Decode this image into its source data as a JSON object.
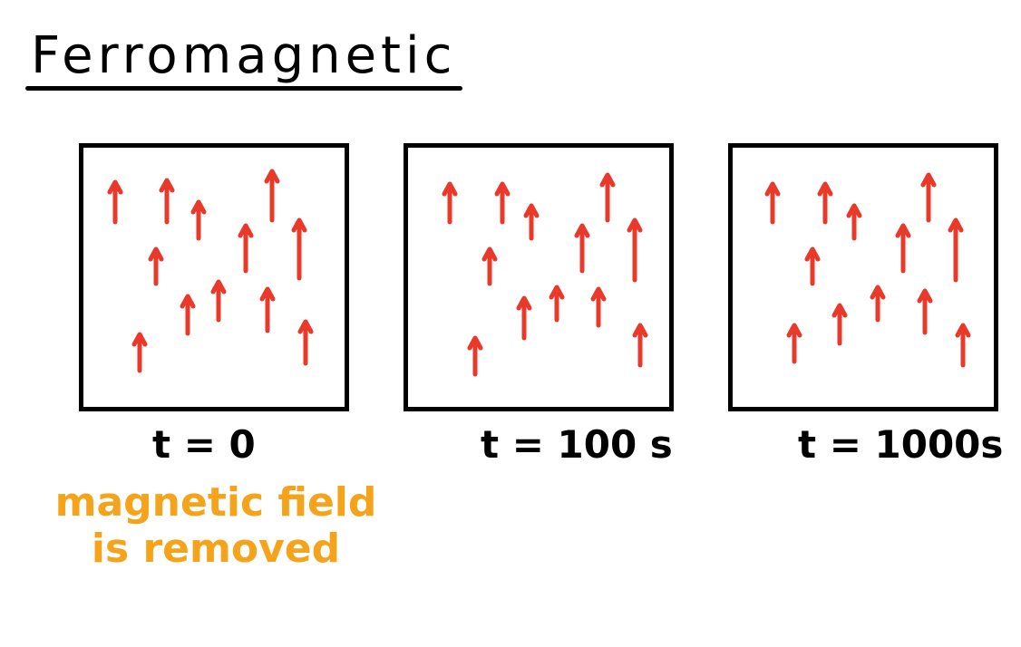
{
  "title": "Ferromagnetic",
  "panels": [
    {
      "label": "t = 0"
    },
    {
      "label": "t = 100 s"
    },
    {
      "label": "t = 1000s"
    }
  ],
  "annotation": {
    "line1": "magnetic field",
    "line2": "is removed"
  },
  "colors": {
    "arrow": "#e8392a",
    "annotation": "#f5a31a",
    "ink": "#000000"
  },
  "icons": {
    "moment": "up-arrow-icon"
  }
}
